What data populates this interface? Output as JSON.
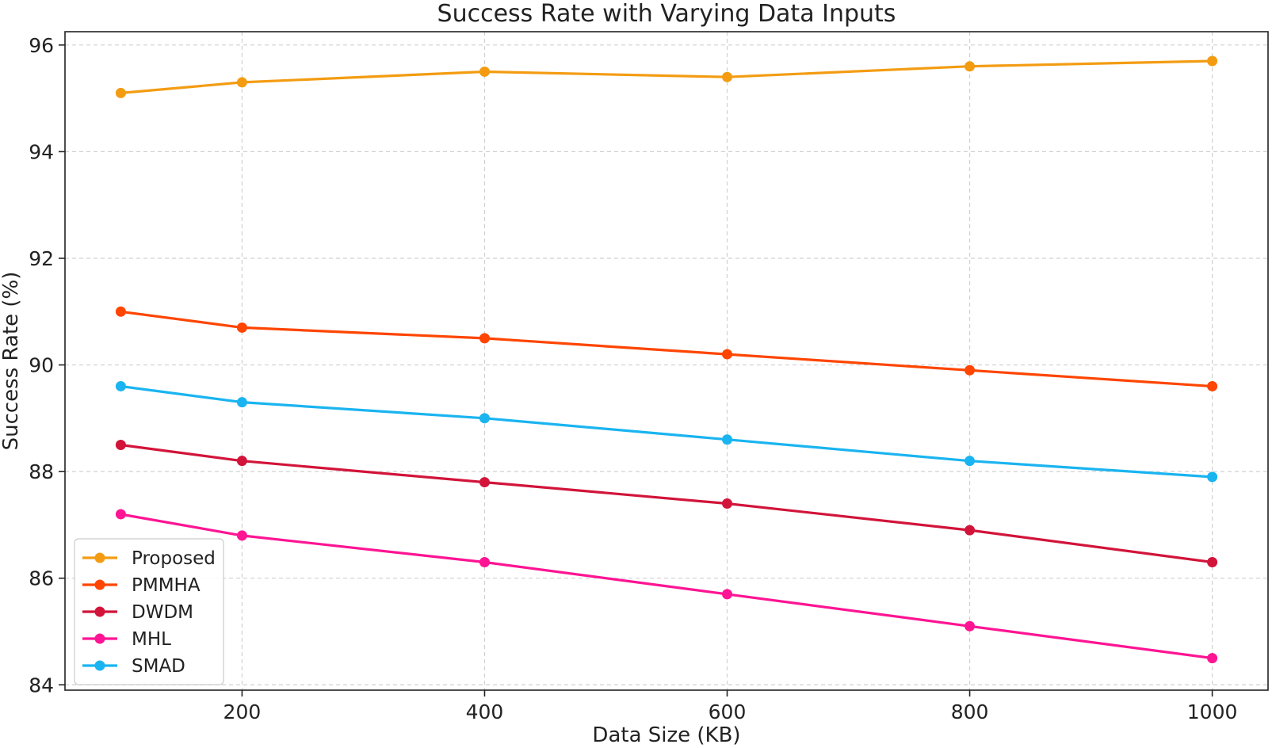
{
  "chart_data": {
    "type": "line",
    "title": "Success Rate with Varying Data Inputs",
    "xlabel": "Data Size (KB)",
    "ylabel": "Success Rate (%)",
    "x": [
      100,
      200,
      400,
      600,
      800,
      1000
    ],
    "xlim": [
      54,
      1046
    ],
    "ylim": [
      83.9,
      96.25
    ],
    "xticks": [
      200,
      400,
      600,
      800,
      1000
    ],
    "xtick_labels": [
      "200",
      "400",
      "600",
      "800",
      "1000"
    ],
    "yticks": [
      84,
      86,
      88,
      90,
      92,
      94,
      96
    ],
    "ytick_labels": [
      "84",
      "86",
      "88",
      "90",
      "92",
      "94",
      "96"
    ],
    "grid": true,
    "legend_position": "bottom-left",
    "series": [
      {
        "name": "Proposed",
        "color": "#F39C12",
        "values": [
          95.1,
          95.3,
          95.5,
          95.4,
          95.6,
          95.7
        ]
      },
      {
        "name": "PMMHA",
        "color": "#FF4500",
        "values": [
          91.0,
          90.7,
          90.5,
          90.2,
          89.9,
          89.6
        ]
      },
      {
        "name": "DWDM",
        "color": "#D2143A",
        "values": [
          88.5,
          88.2,
          87.8,
          87.4,
          86.9,
          86.3
        ]
      },
      {
        "name": "MHL",
        "color": "#FF1493",
        "values": [
          87.2,
          86.8,
          86.3,
          85.7,
          85.1,
          84.5
        ]
      },
      {
        "name": "SMAD",
        "color": "#1AB4F0",
        "values": [
          89.6,
          89.3,
          89.0,
          88.6,
          88.2,
          87.9
        ]
      }
    ],
    "legend_order": [
      "Proposed",
      "PMMHA",
      "DWDM",
      "MHL",
      "SMAD"
    ]
  }
}
